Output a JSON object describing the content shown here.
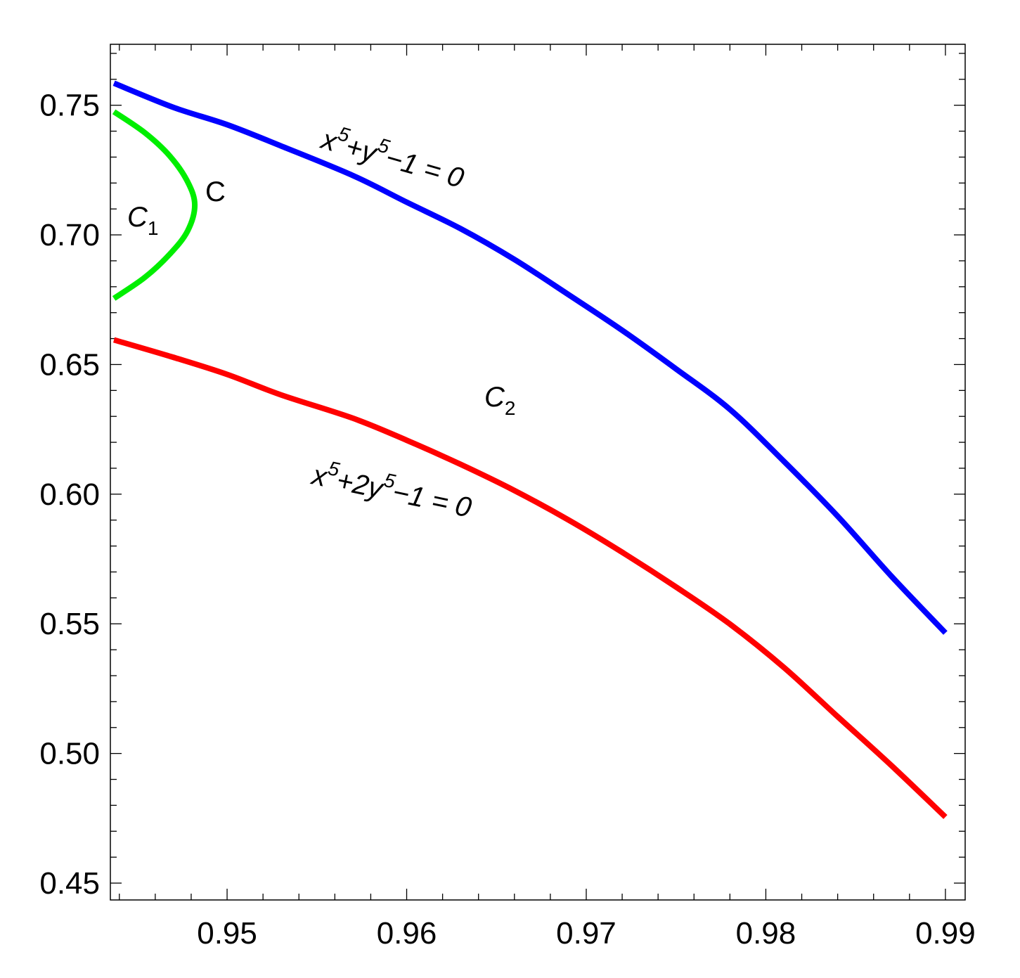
{
  "chart_data": {
    "type": "line",
    "title": "",
    "xlabel": "",
    "ylabel": "",
    "xlim": [
      0.9435,
      0.9911
    ],
    "ylim": [
      0.4435,
      0.7735
    ],
    "x_major_ticks": [
      0.95,
      0.96,
      0.97,
      0.98,
      0.99
    ],
    "x_tick_labels": [
      "0.95",
      "0.96",
      "0.97",
      "0.98",
      "0.99"
    ],
    "y_major_ticks": [
      0.45,
      0.5,
      0.55,
      0.6,
      0.65,
      0.7,
      0.75
    ],
    "y_tick_labels": [
      "0.45",
      "0.50",
      "0.55",
      "0.60",
      "0.65",
      "0.70",
      "0.75"
    ],
    "grid": false,
    "frame": "box",
    "series": [
      {
        "color": "#0000ff",
        "x": [
          0.9437,
          0.947,
          0.95,
          0.953,
          0.957,
          0.96,
          0.963,
          0.966,
          0.969,
          0.972,
          0.975,
          0.978,
          0.981,
          0.984,
          0.987,
          0.99
        ],
        "y": [
          0.7585,
          0.7492,
          0.7425,
          0.7343,
          0.7229,
          0.7126,
          0.7024,
          0.6905,
          0.677,
          0.6632,
          0.6483,
          0.6327,
          0.6127,
          0.5915,
          0.5683,
          0.5465
        ]
      },
      {
        "color": "#ff0000",
        "x": [
          0.9437,
          0.947,
          0.95,
          0.953,
          0.957,
          0.96,
          0.963,
          0.966,
          0.969,
          0.972,
          0.975,
          0.978,
          0.981,
          0.984,
          0.987,
          0.99
        ],
        "y": [
          0.6595,
          0.6528,
          0.6462,
          0.6383,
          0.6293,
          0.6208,
          0.6115,
          0.6014,
          0.5901,
          0.5776,
          0.5642,
          0.5499,
          0.5332,
          0.5142,
          0.4953,
          0.4755
        ]
      },
      {
        "color": "#00ee00",
        "x": [
          0.9437,
          0.9454,
          0.9468,
          0.9478,
          0.9482,
          0.9478,
          0.9468,
          0.9454,
          0.9437
        ],
        "y": [
          0.7475,
          0.7395,
          0.7305,
          0.7205,
          0.7115,
          0.7015,
          0.6925,
          0.6835,
          0.6755
        ]
      }
    ],
    "annotations": {
      "blue_curve": {
        "pre": "x",
        "sup1": "5",
        "mid": "+y",
        "sup2": "5",
        "post": "−1 = 0"
      },
      "red_curve": {
        "pre": "x",
        "sup1": "5",
        "mid": "+2y",
        "sup2": "5",
        "post": "−1 = 0"
      },
      "green_curve": "C",
      "region_1": {
        "base": "C",
        "sub": "1"
      },
      "region_2": {
        "base": "C",
        "sub": "2"
      }
    }
  }
}
